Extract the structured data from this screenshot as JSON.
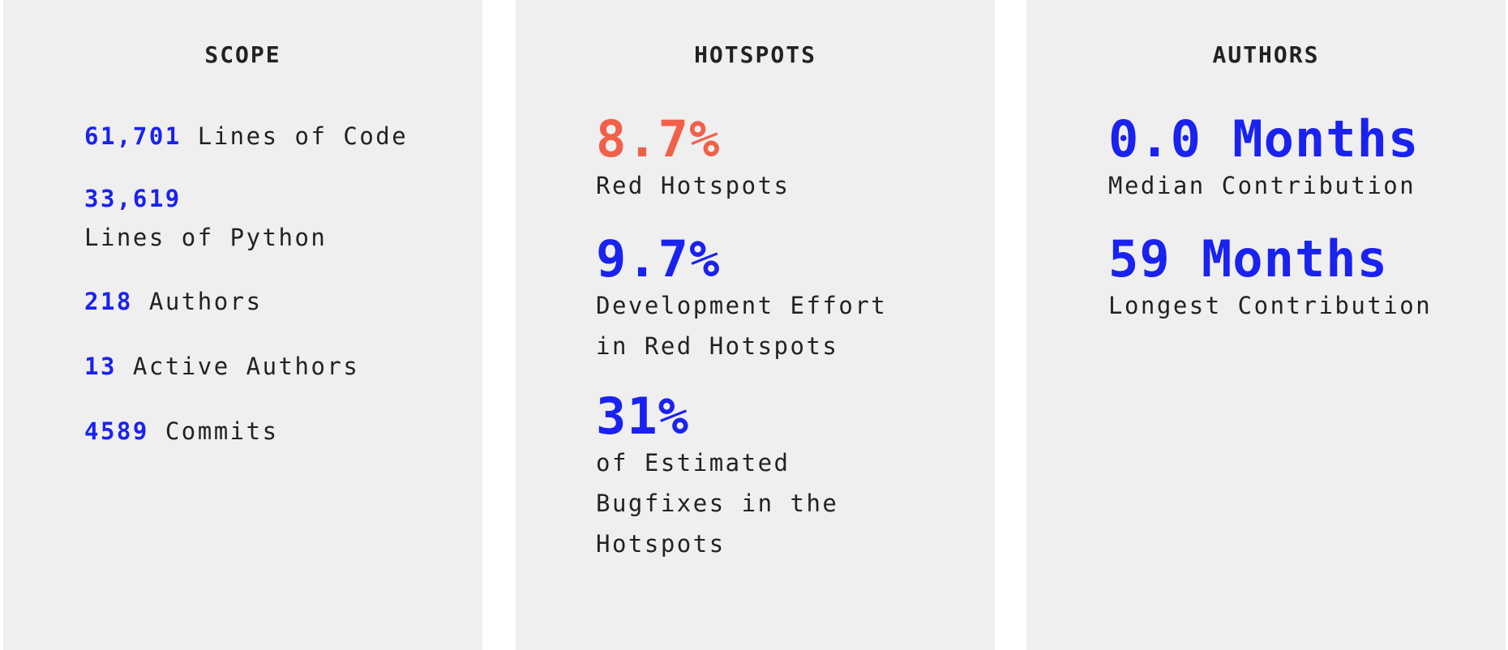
{
  "colors": {
    "panel_background": "#efefef",
    "accent_blue": "#1a22f0",
    "accent_red": "#f2604a",
    "text": "#222222"
  },
  "scope": {
    "title": "SCOPE",
    "items": [
      {
        "value": "61,701",
        "label": "Lines of Code"
      },
      {
        "value": "33,619",
        "label": "Lines of Python"
      },
      {
        "value": "218",
        "label": "Authors"
      },
      {
        "value": "13",
        "label": "Active Authors"
      },
      {
        "value": "4589",
        "label": "Commits"
      }
    ]
  },
  "hotspots": {
    "title": "HOTSPOTS",
    "metrics": [
      {
        "value": "8.7%",
        "label_lines": [
          "Red Hotspots"
        ]
      },
      {
        "value": "9.7%",
        "label_lines": [
          "Development Effort",
          "in Red Hotspots"
        ]
      },
      {
        "value": "31%",
        "label_lines": [
          "of Estimated",
          "Bugfixes in the",
          "Hotspots"
        ]
      }
    ]
  },
  "authors": {
    "title": "AUTHORS",
    "metrics": [
      {
        "value": "0.0 Months",
        "label_lines": [
          "Median Contribution"
        ]
      },
      {
        "value": "59 Months",
        "label_lines": [
          "Longest Contribution"
        ]
      }
    ]
  }
}
